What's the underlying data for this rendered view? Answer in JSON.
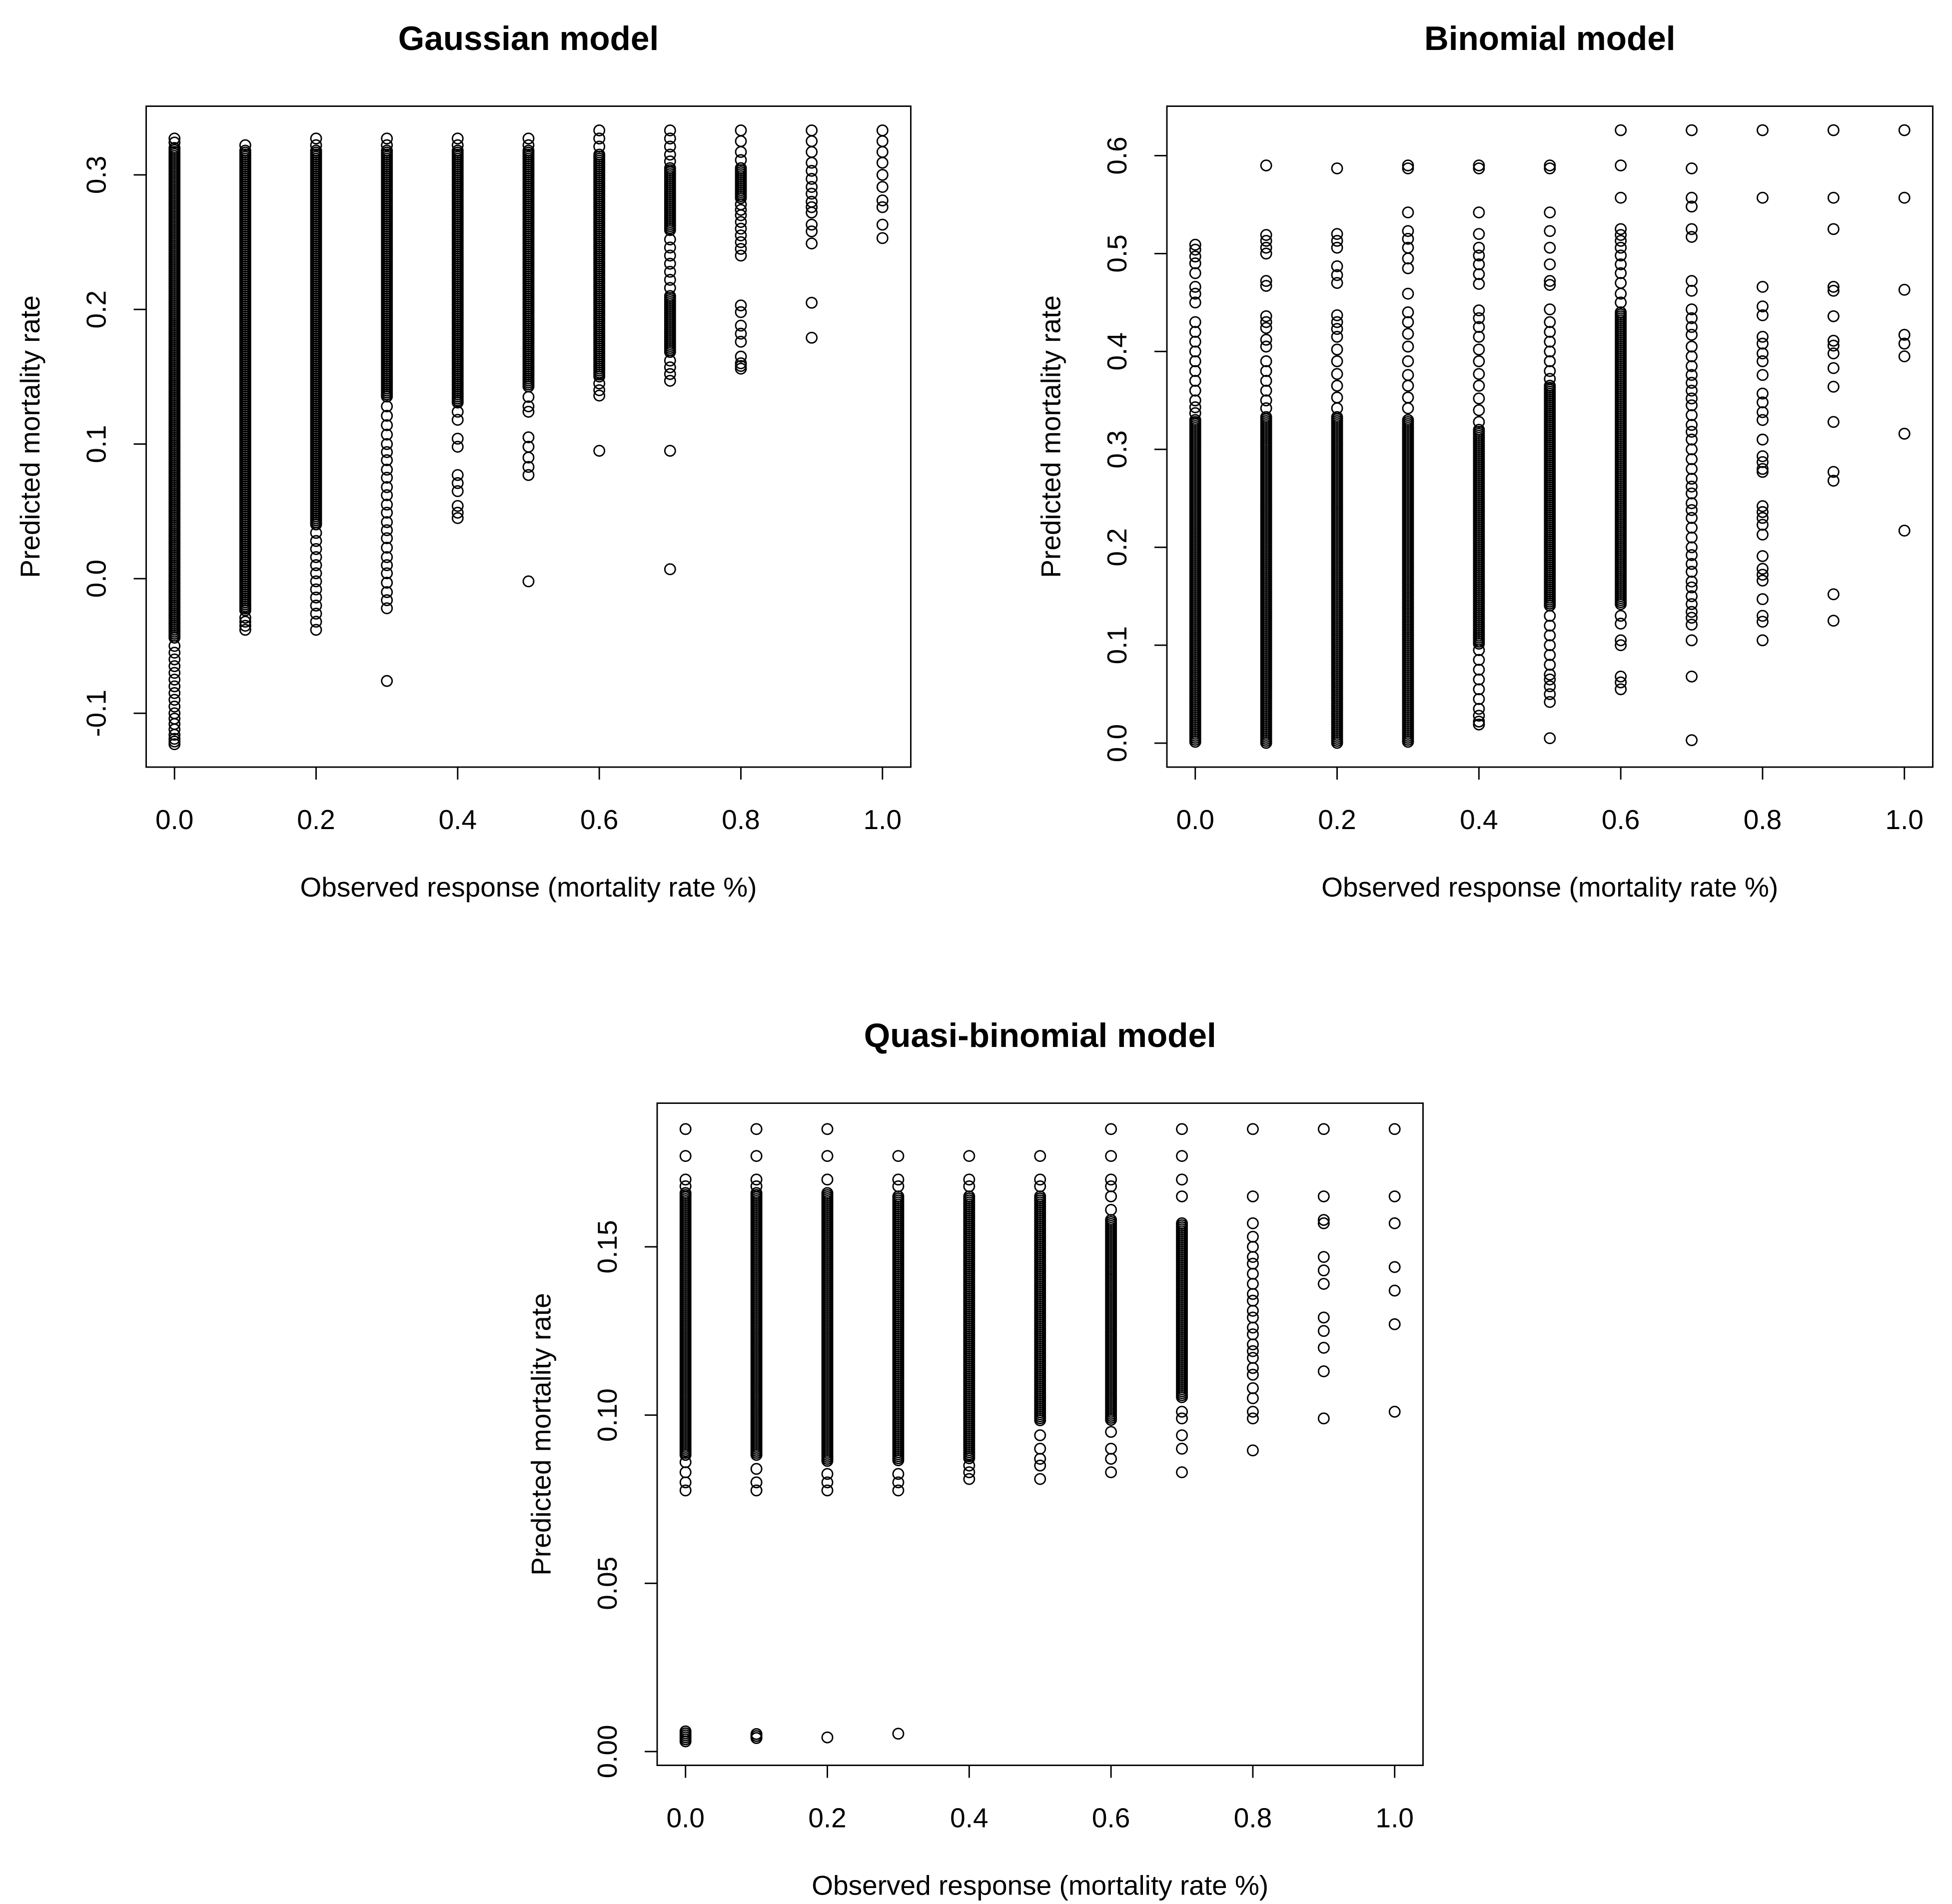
{
  "colors": {
    "background": "#ffffff",
    "ink": "#000000"
  },
  "chart_data": [
    {
      "type": "scatter",
      "title": "Gaussian model",
      "xlabel": "Observed response (mortality rate %)",
      "ylabel": "Predicted mortality rate",
      "xlim": [
        -0.04,
        1.04
      ],
      "ylim": [
        -0.14,
        0.351
      ],
      "grid": false,
      "x_ticks": [
        0.0,
        0.2,
        0.4,
        0.6,
        0.8,
        1.0
      ],
      "x_tick_labels": [
        "0.0",
        "0.2",
        "0.4",
        "0.6",
        "0.8",
        "1.0"
      ],
      "y_ticks": [
        -0.1,
        0.0,
        0.1,
        0.2,
        0.3
      ],
      "y_tick_labels": [
        "-0.1",
        "0.0",
        "0.1",
        "0.2",
        "0.3"
      ],
      "columns": [
        {
          "x": 0.0,
          "dense_y_ranges": [
            [
              -0.045,
              0.32
            ]
          ],
          "y": [
            0.327,
            0.324,
            -0.05,
            -0.055,
            -0.06,
            -0.065,
            -0.07,
            -0.075,
            -0.08,
            -0.085,
            -0.09,
            -0.095,
            -0.1,
            -0.104,
            -0.108,
            -0.112,
            -0.116,
            -0.119,
            -0.121,
            -0.123
          ]
        },
        {
          "x": 0.1,
          "dense_y_ranges": [
            [
              -0.025,
              0.318
            ]
          ],
          "y": [
            0.322,
            -0.029,
            -0.032,
            -0.035,
            -0.038
          ]
        },
        {
          "x": 0.2,
          "dense_y_ranges": [
            [
              0.04,
              0.318
            ]
          ],
          "y": [
            0.327,
            0.322,
            0.034,
            0.028,
            0.022,
            0.016,
            0.01,
            0.004,
            -0.002,
            -0.008,
            -0.014,
            -0.02,
            -0.026,
            -0.032,
            -0.038
          ]
        },
        {
          "x": 0.3,
          "dense_y_ranges": [
            [
              0.135,
              0.318
            ]
          ],
          "y": [
            0.327,
            0.322,
            0.128,
            0.121,
            0.114,
            0.107,
            0.1,
            0.094,
            0.088,
            0.081,
            0.075,
            0.068,
            0.062,
            0.055,
            0.049,
            0.042,
            0.036,
            0.03,
            0.023,
            0.016,
            0.01,
            0.004,
            -0.003,
            -0.01,
            -0.016,
            -0.022,
            -0.076
          ]
        },
        {
          "x": 0.4,
          "dense_y_ranges": [
            [
              0.13,
              0.318
            ]
          ],
          "y": [
            0.327,
            0.322,
            0.124,
            0.118,
            0.104,
            0.098,
            0.077,
            0.071,
            0.065,
            0.054,
            0.049,
            0.045
          ]
        },
        {
          "x": 0.5,
          "dense_y_ranges": [
            [
              0.142,
              0.318
            ]
          ],
          "y": [
            0.327,
            0.322,
            0.135,
            0.128,
            0.124,
            0.105,
            0.098,
            0.09,
            0.083,
            0.077,
            -0.002
          ]
        },
        {
          "x": 0.6,
          "dense_y_ranges": [
            [
              0.15,
              0.315
            ]
          ],
          "y": [
            0.333,
            0.327,
            0.321,
            0.145,
            0.14,
            0.136,
            0.095
          ]
        },
        {
          "x": 0.7,
          "dense_y_ranges": [
            [
              0.258,
              0.305
            ],
            [
              0.168,
              0.21
            ]
          ],
          "y": [
            0.333,
            0.327,
            0.321,
            0.315,
            0.31,
            0.252,
            0.246,
            0.24,
            0.234,
            0.228,
            0.222,
            0.216,
            0.162,
            0.157,
            0.152,
            0.147,
            0.095,
            0.007
          ]
        },
        {
          "x": 0.8,
          "dense_y_ranges": [
            [
              0.282,
              0.305
            ]
          ],
          "y": [
            0.333,
            0.325,
            0.317,
            0.311,
            0.278,
            0.274,
            0.27,
            0.265,
            0.26,
            0.255,
            0.25,
            0.245,
            0.24,
            0.203,
            0.198,
            0.188,
            0.182,
            0.176,
            0.165,
            0.16,
            0.158,
            0.156
          ]
        },
        {
          "x": 0.9,
          "dense_y_ranges": [],
          "y": [
            0.333,
            0.325,
            0.317,
            0.309,
            0.303,
            0.297,
            0.291,
            0.286,
            0.28,
            0.276,
            0.272,
            0.263,
            0.258,
            0.249,
            0.205,
            0.179
          ]
        },
        {
          "x": 1.0,
          "dense_y_ranges": [],
          "y": [
            0.333,
            0.325,
            0.317,
            0.309,
            0.3,
            0.291,
            0.281,
            0.276,
            0.263,
            0.253
          ]
        }
      ]
    },
    {
      "type": "scatter",
      "title": "Binomial model",
      "xlabel": "Observed response (mortality rate %)",
      "ylabel": "Predicted mortality rate",
      "xlim": [
        -0.04,
        1.04
      ],
      "ylim": [
        -0.0245,
        0.6505
      ],
      "grid": false,
      "x_ticks": [
        0.0,
        0.2,
        0.4,
        0.6,
        0.8,
        1.0
      ],
      "x_tick_labels": [
        "0.0",
        "0.2",
        "0.4",
        "0.6",
        "0.8",
        "1.0"
      ],
      "y_ticks": [
        0.0,
        0.1,
        0.2,
        0.3,
        0.4,
        0.5,
        0.6
      ],
      "y_tick_labels": [
        "0.0",
        "0.1",
        "0.2",
        "0.3",
        "0.4",
        "0.5",
        "0.6"
      ],
      "columns": [
        {
          "x": 0.0,
          "dense_y_ranges": [
            [
              0.0,
              0.33
            ]
          ],
          "y": [
            0.509,
            0.504,
            0.497,
            0.49,
            0.48,
            0.466,
            0.459,
            0.45,
            0.43,
            0.42,
            0.41,
            0.4,
            0.39,
            0.38,
            0.37,
            0.36,
            0.35,
            0.343,
            0.337
          ]
        },
        {
          "x": 0.1,
          "dense_y_ranges": [
            [
              0.0,
              0.333
            ]
          ],
          "y": [
            0.59,
            0.519,
            0.513,
            0.506,
            0.5,
            0.472,
            0.467,
            0.436,
            0.43,
            0.424,
            0.412,
            0.405,
            0.39,
            0.38,
            0.37,
            0.36,
            0.35,
            0.342
          ]
        },
        {
          "x": 0.2,
          "dense_y_ranges": [
            [
              0.0,
              0.333
            ]
          ],
          "y": [
            0.587,
            0.52,
            0.513,
            0.506,
            0.487,
            0.478,
            0.47,
            0.437,
            0.43,
            0.423,
            0.415,
            0.402,
            0.39,
            0.377,
            0.365,
            0.353,
            0.342
          ]
        },
        {
          "x": 0.3,
          "dense_y_ranges": [
            [
              0.0,
              0.33
            ]
          ],
          "y": [
            0.59,
            0.587,
            0.542,
            0.523,
            0.515,
            0.506,
            0.495,
            0.485,
            0.459,
            0.44,
            0.43,
            0.418,
            0.405,
            0.39,
            0.376,
            0.365,
            0.353,
            0.342
          ]
        },
        {
          "x": 0.4,
          "dense_y_ranges": [
            [
              0.1,
              0.32
            ]
          ],
          "y": [
            0.59,
            0.587,
            0.542,
            0.52,
            0.506,
            0.498,
            0.489,
            0.479,
            0.469,
            0.442,
            0.434,
            0.425,
            0.415,
            0.402,
            0.39,
            0.377,
            0.365,
            0.352,
            0.34,
            0.328,
            0.095,
            0.085,
            0.075,
            0.065,
            0.055,
            0.045,
            0.035,
            0.028,
            0.022,
            0.019
          ]
        },
        {
          "x": 0.5,
          "dense_y_ranges": [
            [
              0.14,
              0.365
            ]
          ],
          "y": [
            0.59,
            0.587,
            0.542,
            0.523,
            0.506,
            0.489,
            0.472,
            0.468,
            0.443,
            0.43,
            0.42,
            0.41,
            0.4,
            0.39,
            0.38,
            0.372,
            0.13,
            0.12,
            0.11,
            0.1,
            0.09,
            0.08,
            0.07,
            0.065,
            0.058,
            0.05,
            0.042,
            0.005
          ]
        },
        {
          "x": 0.6,
          "dense_y_ranges": [
            [
              0.14,
              0.44
            ]
          ],
          "y": [
            0.626,
            0.59,
            0.557,
            0.525,
            0.519,
            0.513,
            0.506,
            0.498,
            0.489,
            0.48,
            0.47,
            0.459,
            0.45,
            0.13,
            0.122,
            0.105,
            0.1,
            0.068,
            0.062,
            0.055
          ]
        },
        {
          "x": 0.7,
          "dense_y_ranges": [],
          "y": [
            0.626,
            0.587,
            0.557,
            0.548,
            0.525,
            0.517,
            0.472,
            0.462,
            0.443,
            0.434,
            0.425,
            0.417,
            0.405,
            0.395,
            0.385,
            0.376,
            0.368,
            0.36,
            0.352,
            0.345,
            0.335,
            0.325,
            0.318,
            0.31,
            0.3,
            0.29,
            0.28,
            0.27,
            0.262,
            0.255,
            0.245,
            0.238,
            0.23,
            0.22,
            0.21,
            0.2,
            0.192,
            0.183,
            0.175,
            0.165,
            0.159,
            0.15,
            0.142,
            0.134,
            0.128,
            0.121,
            0.105,
            0.068,
            0.003
          ]
        },
        {
          "x": 0.8,
          "dense_y_ranges": [],
          "y": [
            0.626,
            0.557,
            0.466,
            0.446,
            0.437,
            0.415,
            0.408,
            0.398,
            0.39,
            0.376,
            0.357,
            0.348,
            0.338,
            0.33,
            0.31,
            0.293,
            0.287,
            0.28,
            0.277,
            0.242,
            0.236,
            0.23,
            0.223,
            0.213,
            0.191,
            0.178,
            0.172,
            0.166,
            0.147,
            0.13,
            0.124,
            0.105
          ]
        },
        {
          "x": 0.9,
          "dense_y_ranges": [],
          "y": [
            0.626,
            0.557,
            0.525,
            0.466,
            0.462,
            0.436,
            0.411,
            0.406,
            0.398,
            0.383,
            0.364,
            0.328,
            0.277,
            0.268,
            0.152,
            0.125
          ]
        },
        {
          "x": 1.0,
          "dense_y_ranges": [],
          "y": [
            0.626,
            0.557,
            0.463,
            0.417,
            0.408,
            0.395,
            0.316,
            0.217
          ]
        }
      ]
    },
    {
      "type": "scatter",
      "title": "Quasi-binomial model",
      "xlabel": "Observed response (mortality rate %)",
      "ylabel": "Predicted mortality rate",
      "xlim": [
        -0.04,
        1.04
      ],
      "ylim": [
        -0.0041,
        0.1927
      ],
      "grid": false,
      "x_ticks": [
        0.0,
        0.2,
        0.4,
        0.6,
        0.8,
        1.0
      ],
      "x_tick_labels": [
        "0.0",
        "0.2",
        "0.4",
        "0.6",
        "0.8",
        "1.0"
      ],
      "y_ticks": [
        0.0,
        0.05,
        0.1,
        0.15
      ],
      "y_tick_labels": [
        "0.00",
        "0.05",
        "0.10",
        "0.15"
      ],
      "columns": [
        {
          "x": 0.0,
          "dense_y_ranges": [
            [
              0.088,
              0.166
            ],
            [
              0.0025,
              0.006
            ]
          ],
          "y": [
            0.185,
            0.177,
            0.17,
            0.168,
            0.086,
            0.083,
            0.08,
            0.0776
          ]
        },
        {
          "x": 0.1,
          "dense_y_ranges": [
            [
              0.088,
              0.166
            ],
            [
              0.004,
              0.0052
            ]
          ],
          "y": [
            0.185,
            0.177,
            0.17,
            0.168,
            0.084,
            0.08,
            0.0776
          ]
        },
        {
          "x": 0.2,
          "dense_y_ranges": [
            [
              0.086,
              0.166
            ]
          ],
          "y": [
            0.185,
            0.177,
            0.17,
            0.0825,
            0.08,
            0.0776,
            0.0042
          ]
        },
        {
          "x": 0.3,
          "dense_y_ranges": [
            [
              0.086,
              0.165
            ],
            [
              0.0048,
              0.0053
            ]
          ],
          "y": [
            0.177,
            0.17,
            0.168,
            0.0825,
            0.08,
            0.0776
          ]
        },
        {
          "x": 0.4,
          "dense_y_ranges": [
            [
              0.087,
              0.165
            ]
          ],
          "y": [
            0.177,
            0.17,
            0.168,
            0.085,
            0.083,
            0.081
          ]
        },
        {
          "x": 0.5,
          "dense_y_ranges": [
            [
              0.098,
              0.165
            ]
          ],
          "y": [
            0.177,
            0.17,
            0.168,
            0.094,
            0.09,
            0.087,
            0.085,
            0.081
          ]
        },
        {
          "x": 0.6,
          "dense_y_ranges": [
            [
              0.098,
              0.158
            ]
          ],
          "y": [
            0.185,
            0.177,
            0.17,
            0.168,
            0.165,
            0.161,
            0.095,
            0.09,
            0.087,
            0.083
          ]
        },
        {
          "x": 0.7,
          "dense_y_ranges": [
            [
              0.105,
              0.157
            ]
          ],
          "y": [
            0.185,
            0.177,
            0.17,
            0.165,
            0.101,
            0.099,
            0.094,
            0.09,
            0.083
          ]
        },
        {
          "x": 0.8,
          "dense_y_ranges": [],
          "y": [
            0.185,
            0.165,
            0.157,
            0.153,
            0.15,
            0.147,
            0.145,
            0.142,
            0.139,
            0.136,
            0.134,
            0.131,
            0.129,
            0.126,
            0.124,
            0.121,
            0.119,
            0.117,
            0.114,
            0.112,
            0.108,
            0.105,
            0.101,
            0.099,
            0.0895
          ]
        },
        {
          "x": 0.9,
          "dense_y_ranges": [],
          "y": [
            0.185,
            0.165,
            0.158,
            0.157,
            0.147,
            0.143,
            0.139,
            0.129,
            0.125,
            0.12,
            0.113,
            0.099
          ]
        },
        {
          "x": 1.0,
          "dense_y_ranges": [],
          "y": [
            0.185,
            0.165,
            0.157,
            0.144,
            0.137,
            0.127,
            0.101
          ]
        }
      ]
    }
  ]
}
